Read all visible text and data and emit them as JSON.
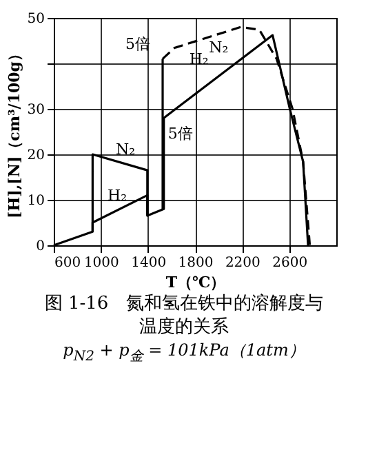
{
  "chart_data": {
    "type": "line",
    "title": "图 1-16　氮和氢在铁中的溶解度与温度的关系",
    "subtitle": "p$_{N2}$ + p$_{金}$ = 101kPa（1atm）",
    "xlabel": "T（℃）",
    "ylabel": "[H],[N]（cm³/100g）",
    "xlim": [
      600,
      3000
    ],
    "xticks": [
      600,
      1000,
      1400,
      1800,
      2200,
      2600
    ],
    "ylim": [
      0,
      50
    ],
    "yticks": [
      0,
      10,
      20,
      30,
      {
        "value": 40,
        "label": null
      },
      50
    ],
    "grid": true,
    "legend": false,
    "series": [
      {
        "name": "H₂",
        "color": "#000000",
        "line_style": "solid",
        "x": [
          600,
          930,
          930,
          1395,
          1395,
          1535,
          1535,
          2459,
          2605,
          2718,
          2760
        ],
        "values": [
          0,
          3,
          5,
          11,
          6.5,
          8,
          28,
          46.2,
          30,
          18.4,
          0
        ]
      },
      {
        "name": "N₂",
        "color": "#000000",
        "line_style": "solid",
        "x": [
          930,
          930,
          1395,
          1395
        ],
        "values": [
          3,
          20,
          16.5,
          6.5
        ]
      },
      {
        "color": "#000000",
        "line_style": "solid",
        "x": [
          1525,
          1525
        ],
        "values": [
          8,
          41
        ]
      },
      {
        "name": "N₂",
        "color": "#000000",
        "line_style": "dashed",
        "x": [
          1525,
          1625,
          2189,
          2346,
          2493,
          2628,
          2718,
          2775
        ],
        "values": [
          41,
          43.4,
          48,
          47.4,
          41,
          30,
          18.4,
          0
        ]
      }
    ],
    "annotations": [
      "5倍",
      "5倍"
    ]
  }
}
